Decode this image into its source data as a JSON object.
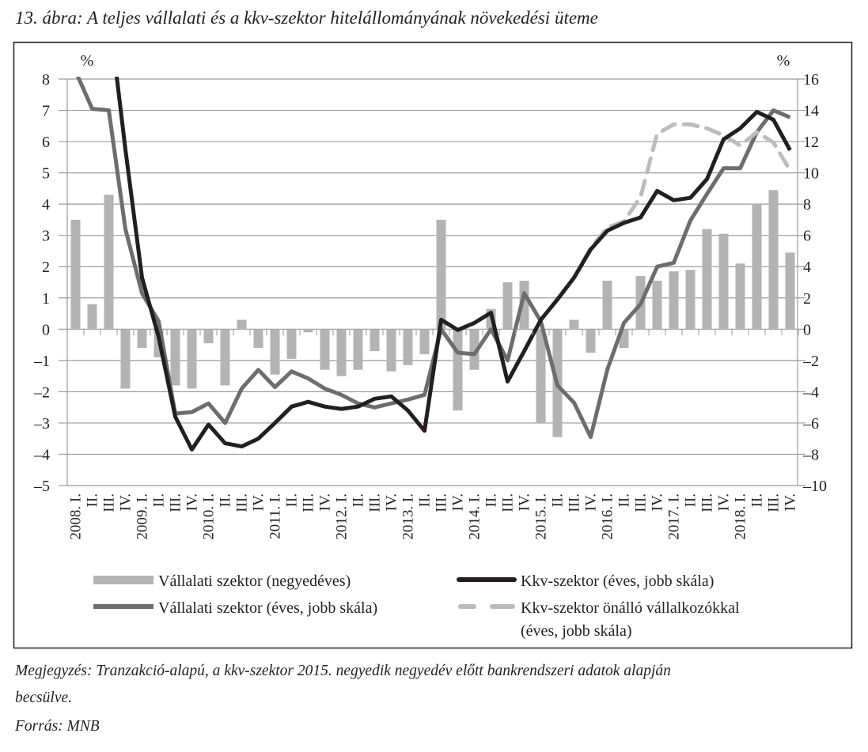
{
  "title": "13. ábra: A teljes vállalati és a kkv-szektor hitelállományának növekedési üteme",
  "notes": {
    "line1": "Megjegyzés: Tranzakció-alapú, a kkv-szektor 2015. negyedik negyedév előtt bankrendszeri adatok alapján",
    "line2": "becsülve.",
    "source": "Forrás: MNB"
  },
  "chart_data": {
    "type": "bar+line",
    "title": "13. ábra: A teljes vállalati és a kkv-szektor hitelállományának növekedési üteme",
    "left_axis": {
      "label": "%",
      "range": [
        -5,
        8
      ],
      "ticks": [
        8,
        7,
        6,
        5,
        4,
        3,
        2,
        1,
        0,
        -1,
        -2,
        -3,
        -4,
        -5
      ]
    },
    "right_axis": {
      "label": "%",
      "range": [
        -10,
        16
      ],
      "ticks": [
        16,
        14,
        12,
        10,
        8,
        6,
        4,
        2,
        0,
        -2,
        -4,
        -6,
        -8,
        -10
      ]
    },
    "tick_labels_display": {
      "8": "8",
      "7": "7",
      "6": "6",
      "5": "5",
      "4": "4",
      "3": "3",
      "2": "2",
      "1": "1",
      "0": "0",
      "-1": "–1",
      "-2": "–2",
      "-3": "–3",
      "-4": "–4",
      "-5": "–5",
      "16": "16",
      "14": "14",
      "12": "12",
      "10": "10",
      "-6": "–6",
      "-8": "–8",
      "-10": "–10"
    },
    "grid": true,
    "categories": [
      "2008. I.",
      "II.",
      "III.",
      "IV.",
      "2009. I.",
      "II.",
      "III.",
      "IV.",
      "2010. I.",
      "II.",
      "III.",
      "IV.",
      "2011. I.",
      "II.",
      "III.",
      "IV.",
      "2012. I.",
      "II.",
      "III.",
      "IV.",
      "2013. I.",
      "II.",
      "III.",
      "IV.",
      "2014. I.",
      "II.",
      "III.",
      "IV.",
      "2015. I.",
      "II.",
      "III.",
      "IV.",
      "2016. I.",
      "II.",
      "III.",
      "IV.",
      "2017. I.",
      "II.",
      "III.",
      "IV.",
      "2018. I.",
      "II.",
      "III.",
      "IV."
    ],
    "series": [
      {
        "name": "Vállalati szektor (negyedéves)",
        "type": "bar",
        "axis": "left",
        "color": "#b3b3b3",
        "values": [
          3.5,
          0.8,
          4.3,
          -1.9,
          -0.6,
          -0.9,
          -1.8,
          -1.9,
          -0.45,
          -1.8,
          0.3,
          -0.6,
          -1.45,
          -0.95,
          -0.1,
          -1.3,
          -1.5,
          -1.3,
          -0.7,
          -1.35,
          -1.15,
          -0.8,
          3.5,
          -2.6,
          -1.3,
          0.65,
          1.5,
          1.55,
          -3.0,
          -3.45,
          0.3,
          -0.75,
          1.55,
          -0.6,
          1.7,
          1.55,
          1.85,
          1.9,
          3.2,
          3.05,
          2.1,
          4.0,
          4.45,
          2.45
        ]
      },
      {
        "name": "Vállalati szektor (éves, jobb skála)",
        "type": "line",
        "axis": "right",
        "color": "#6d6d6e",
        "dash": false,
        "values": [
          16.5,
          14.1,
          14.0,
          6.4,
          2.3,
          0.5,
          -5.4,
          -5.3,
          -4.75,
          -6.0,
          -3.8,
          -2.6,
          -3.7,
          -2.7,
          -3.15,
          -3.8,
          -4.2,
          -4.75,
          -5.0,
          -4.75,
          -4.5,
          -4.2,
          0.0,
          -1.5,
          -1.6,
          0.0,
          -2.0,
          2.3,
          0.5,
          -3.6,
          -4.7,
          -6.9,
          -2.6,
          0.4,
          1.6,
          4.0,
          4.25,
          6.95,
          8.65,
          10.3,
          10.3,
          12.6,
          14.0,
          13.55
        ]
      },
      {
        "name": "Kkv-szektor önálló vállalkozókkal (éves, jobb skála)",
        "type": "line",
        "axis": "right",
        "color": "#bcbcbc",
        "dash": true,
        "values": [
          null,
          null,
          null,
          null,
          null,
          null,
          null,
          null,
          null,
          null,
          null,
          null,
          null,
          null,
          null,
          null,
          null,
          null,
          null,
          null,
          null,
          null,
          null,
          null,
          null,
          null,
          null,
          null,
          null,
          1.9,
          3.3,
          5.2,
          6.5,
          6.9,
          8.45,
          12.5,
          13.1,
          13.1,
          12.85,
          12.4,
          11.75,
          12.6,
          11.95,
          10.15
        ]
      },
      {
        "name": "Kkv-szektor (éves, jobb skála)",
        "type": "line",
        "axis": "right",
        "color": "#231f20",
        "dash": false,
        "values": [
          null,
          null,
          20.4,
          11.5,
          3.3,
          -0.5,
          -5.6,
          -7.7,
          -6.1,
          -7.3,
          -7.5,
          -7.0,
          -6.0,
          -4.95,
          -4.65,
          -4.95,
          -5.1,
          -4.95,
          -4.45,
          -4.3,
          -5.2,
          -6.5,
          0.6,
          -0.05,
          0.4,
          1.05,
          -3.35,
          -1.4,
          0.6,
          1.9,
          3.3,
          5.1,
          6.3,
          6.8,
          7.15,
          8.85,
          8.25,
          8.4,
          9.6,
          12.15,
          12.85,
          13.9,
          13.4,
          11.45
        ]
      }
    ],
    "legend": {
      "placement": "bottom",
      "items": [
        {
          "label": "Vállalati szektor (negyedéves)",
          "style": "bar"
        },
        {
          "label": "Kkv-szektor (éves, jobb skála)",
          "style": "line"
        },
        {
          "label": "Vállalati szektor (éves, jobb skála)",
          "style": "line"
        },
        {
          "label": "Kkv-szektor önálló vállalkozókkal",
          "label2": "(éves, jobb skála)",
          "style": "dashed"
        }
      ]
    }
  }
}
